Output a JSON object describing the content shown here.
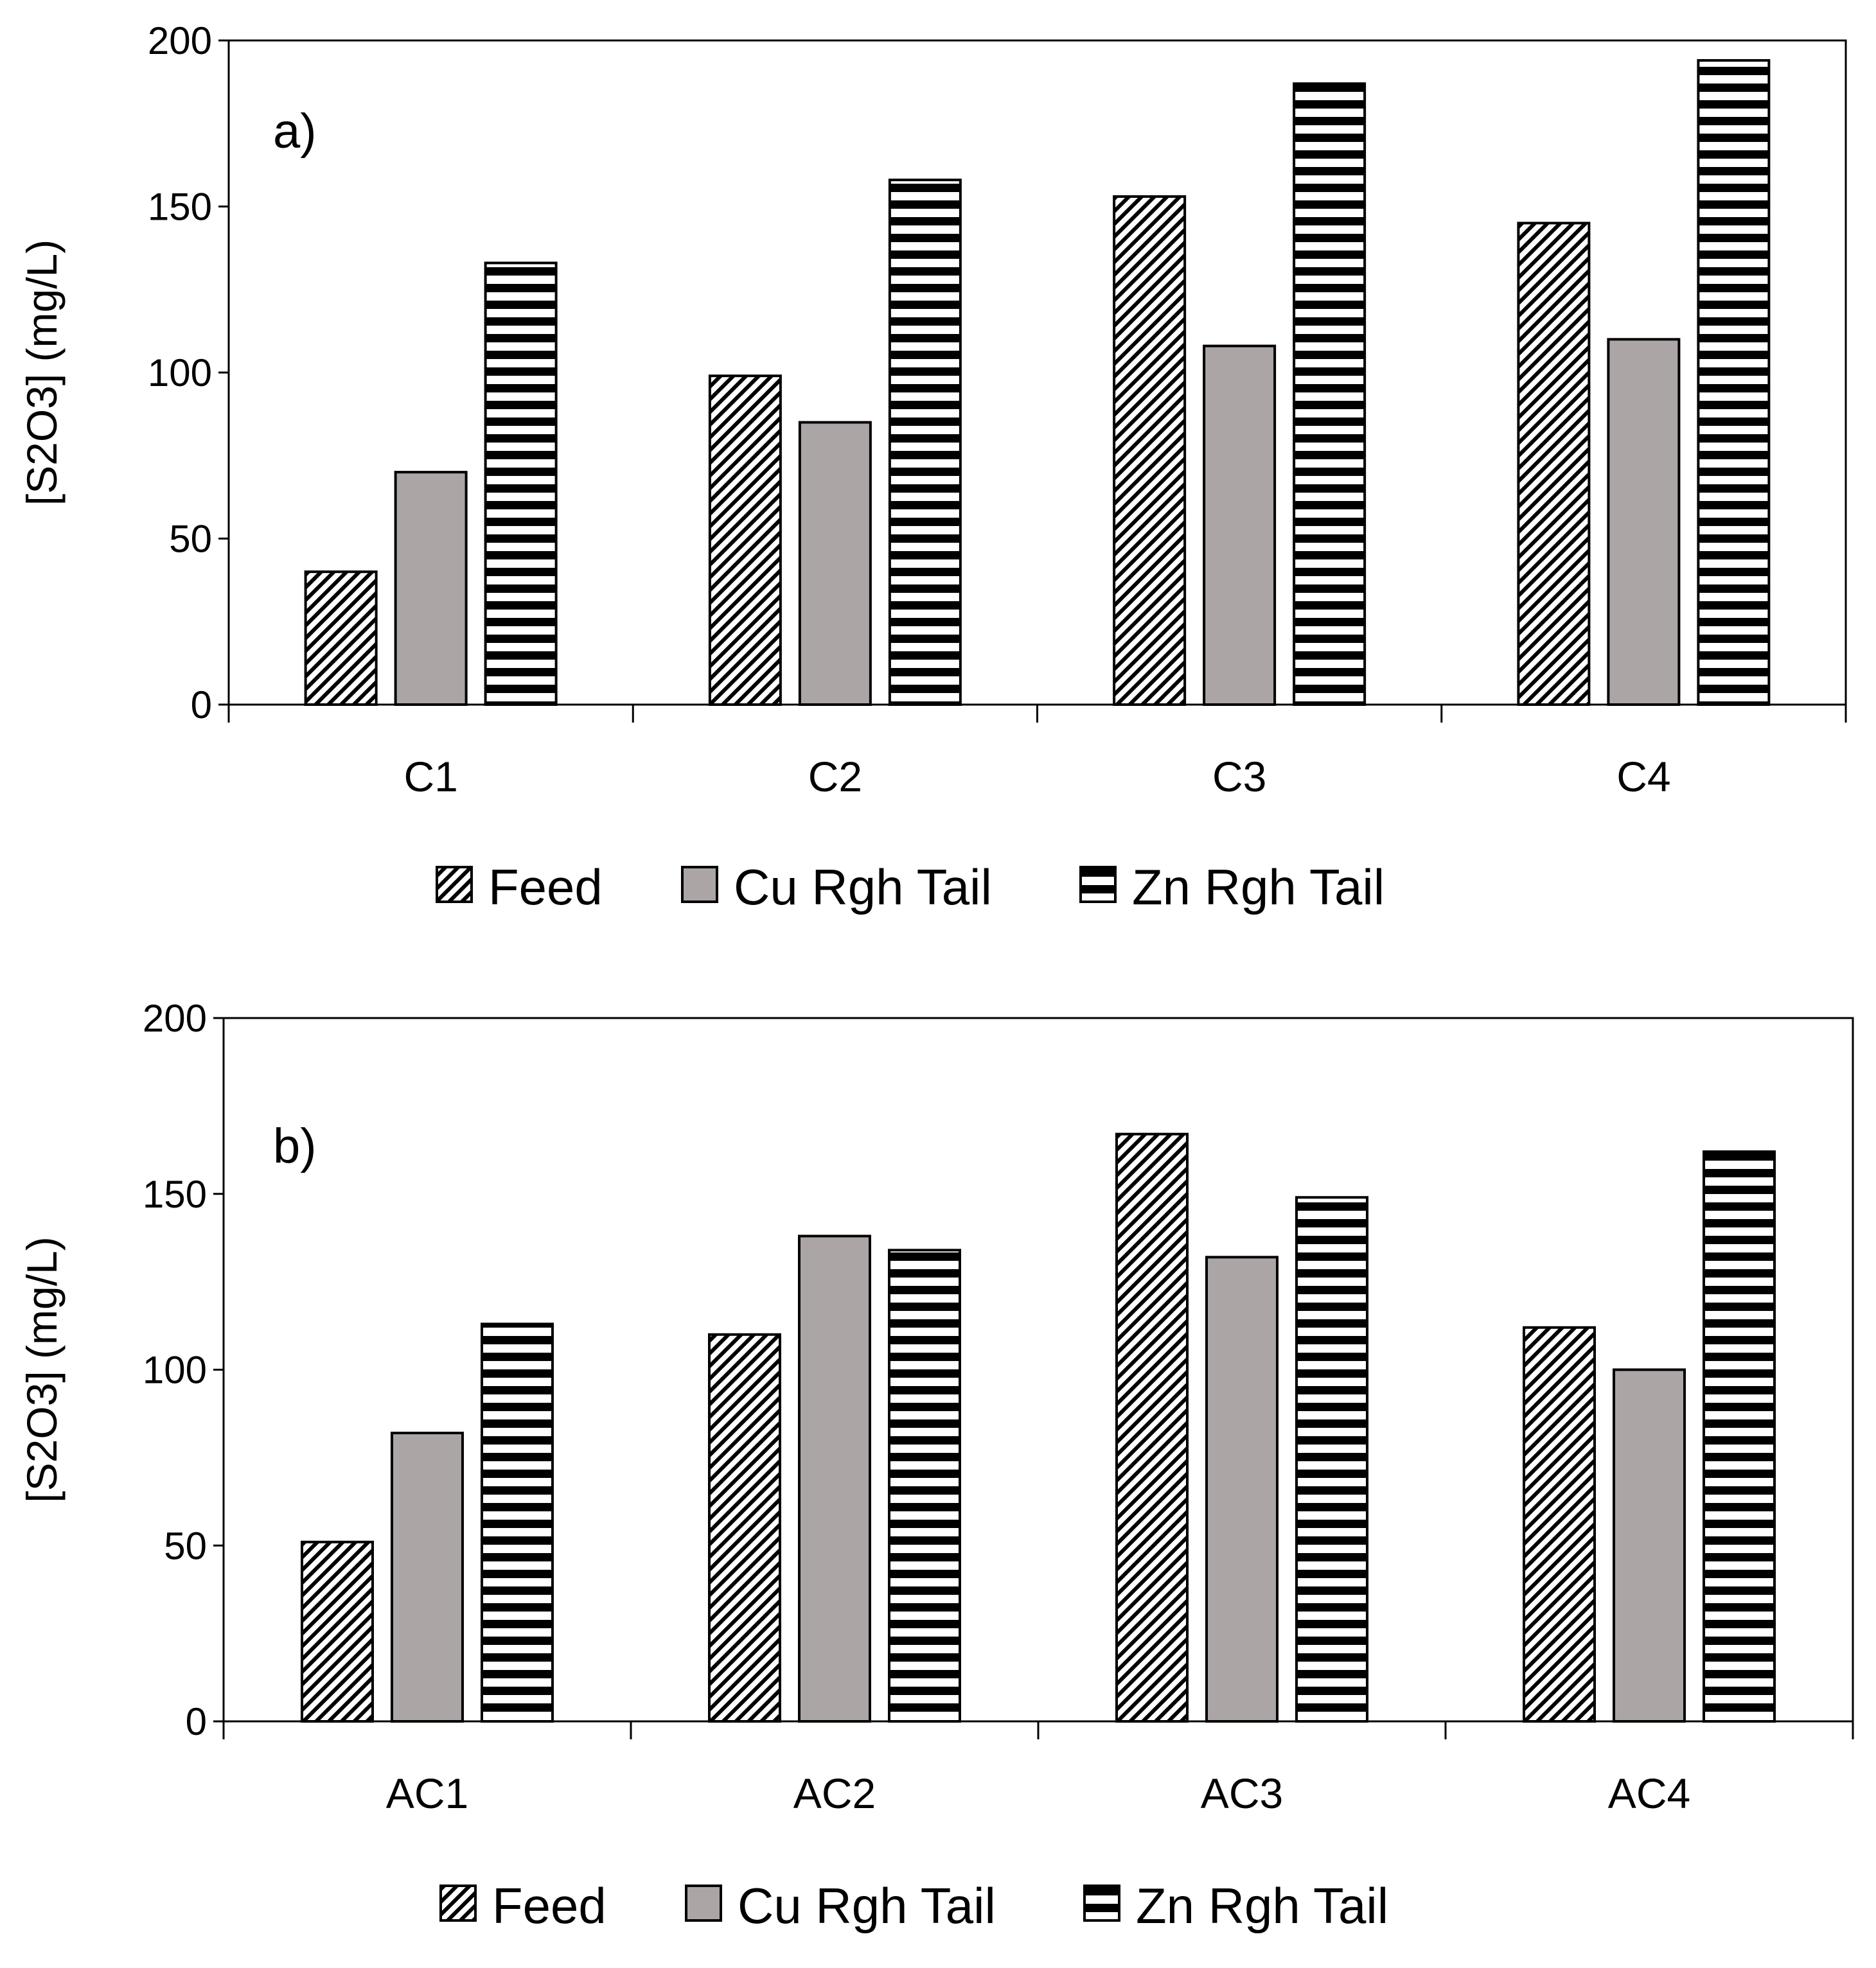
{
  "colors": {
    "feed_hatch": "#000000",
    "cu_fill": "#aba6a5",
    "zn_stripe": "#000000",
    "axis": "#000000",
    "background": "#ffffff"
  },
  "chart_data": [
    {
      "type": "bar",
      "panel_label": "a)",
      "categories": [
        "C1",
        "C2",
        "C3",
        "C4"
      ],
      "series": [
        {
          "name": "Feed",
          "pattern": "diagonal-hatch",
          "values": [
            40,
            99,
            153,
            145
          ]
        },
        {
          "name": "Cu Rgh Tail",
          "pattern": "solid-gray",
          "values": [
            70,
            85,
            108,
            110
          ]
        },
        {
          "name": "Zn Rgh Tail",
          "pattern": "horizontal-stripes",
          "values": [
            133,
            158,
            187,
            194
          ]
        }
      ],
      "ylabel": "[S2O3] (mg/L)",
      "xlabel": "",
      "ylim": [
        0,
        200
      ],
      "yticks": [
        0,
        50,
        100,
        150,
        200
      ],
      "legend_position": "bottom"
    },
    {
      "type": "bar",
      "panel_label": "b)",
      "categories": [
        "AC1",
        "AC2",
        "AC3",
        "AC4"
      ],
      "series": [
        {
          "name": "Feed",
          "pattern": "diagonal-hatch",
          "values": [
            51,
            110,
            167,
            112
          ]
        },
        {
          "name": "Cu Rgh Tail",
          "pattern": "solid-gray",
          "values": [
            82,
            138,
            132,
            100
          ]
        },
        {
          "name": "Zn Rgh Tail",
          "pattern": "horizontal-stripes",
          "values": [
            113,
            134,
            149,
            162
          ]
        }
      ],
      "ylabel": "[S2O3] (mg/L)",
      "xlabel": "",
      "ylim": [
        0,
        200
      ],
      "yticks": [
        0,
        50,
        100,
        150,
        200
      ],
      "legend_position": "bottom"
    }
  ]
}
